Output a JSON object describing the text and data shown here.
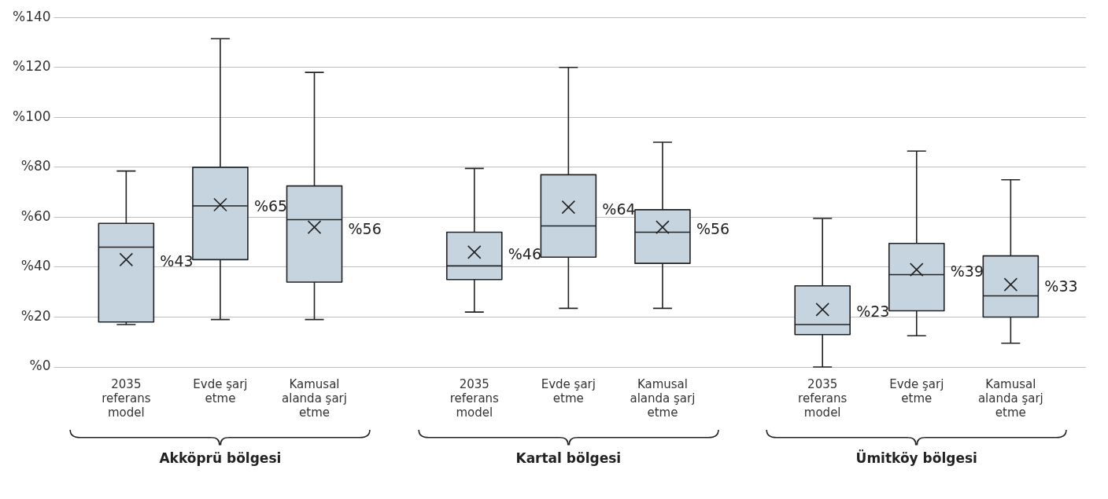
{
  "chart_data": {
    "type": "box",
    "categories": [
      "2035 referans model",
      "Evde şarj etme",
      "Kamusal alanda şarj etme",
      "2035 referans model",
      "Evde şarj etme",
      "Kamusal alanda şarj etme",
      "2035 referans model",
      "Evde şarj etme",
      "Kamusal alanda şarj etme"
    ],
    "color": "#c6d4df",
    "boxes": [
      {
        "low": 17,
        "q1": 18,
        "median": 48,
        "q3": 57.5,
        "high": 78.5,
        "mean": 43
      },
      {
        "low": 19,
        "q1": 43,
        "median": 64.5,
        "q3": 80,
        "high": 131.5,
        "mean": 65
      },
      {
        "low": 19,
        "q1": 34,
        "median": 59,
        "q3": 72.5,
        "high": 118,
        "mean": 56
      },
      {
        "low": 22,
        "q1": 35,
        "median": 40.5,
        "q3": 54,
        "high": 79.5,
        "mean": 46
      },
      {
        "low": 23.5,
        "q1": 44,
        "median": 56.5,
        "q3": 77,
        "high": 120,
        "mean": 64
      },
      {
        "low": 23.5,
        "q1": 41.5,
        "median": 54,
        "q3": 63,
        "high": 90,
        "mean": 56
      },
      {
        "low": 0,
        "q1": 13,
        "median": 17,
        "q3": 32.5,
        "high": 59.5,
        "mean": 23
      },
      {
        "low": 12.5,
        "q1": 22.5,
        "median": 37,
        "q3": 49.5,
        "high": 86.5,
        "mean": 39
      },
      {
        "low": 9.5,
        "q1": 20,
        "median": 28.5,
        "q3": 44.5,
        "high": 75,
        "mean": 33
      }
    ],
    "value_labels": [
      "%43",
      "%65",
      "%56",
      "%46",
      "%64",
      "%56",
      "%23",
      "%39",
      "%33"
    ],
    "marker": "cross",
    "ylim": [
      0,
      140
    ],
    "yticks": [
      {
        "value": 0,
        "label": "%0"
      },
      {
        "value": 20,
        "label": "%20"
      },
      {
        "value": 40,
        "label": "%40"
      },
      {
        "value": 60,
        "label": "%60"
      },
      {
        "value": 80,
        "label": "%80"
      },
      {
        "value": 100,
        "label": "%100"
      },
      {
        "value": 120,
        "label": "%120"
      },
      {
        "value": 140,
        "label": "%140"
      }
    ],
    "grid": "y",
    "annotations": [
      "Akköprü bölgesi",
      "Kartal bölgesi",
      "Ümitköy bölgesi"
    ]
  }
}
